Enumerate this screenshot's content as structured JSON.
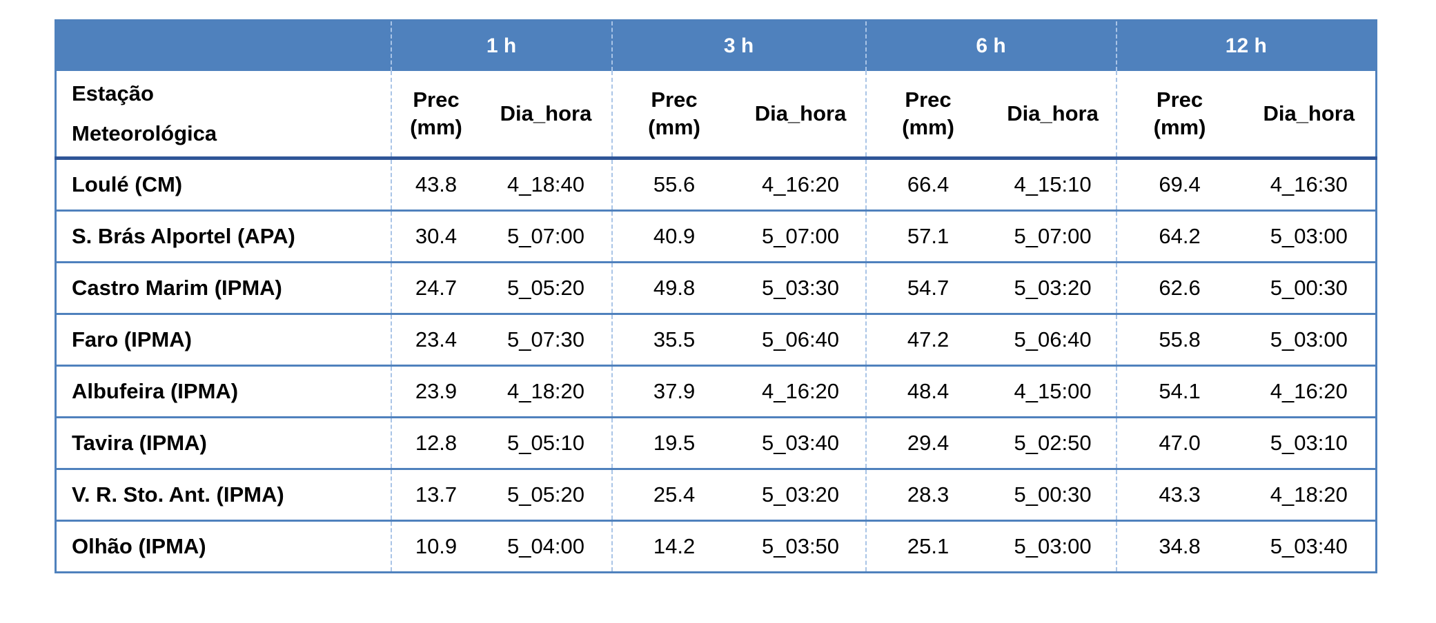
{
  "table": {
    "groups": [
      "1 h",
      "3 h",
      "6 h",
      "12 h"
    ],
    "station_header_line1": "Estação",
    "station_header_line2": "Meteorológica",
    "prec_label_line1": "Prec",
    "prec_label_line2": "(mm)",
    "dia_label": "Dia_hora",
    "rows": [
      {
        "station": "Loulé (CM)",
        "p1": "43.8",
        "d1": "4_18:40",
        "p3": "55.6",
        "d3": "4_16:20",
        "p6": "66.4",
        "d6": "4_15:10",
        "p12": "69.4",
        "d12": "4_16:30"
      },
      {
        "station": "S. Brás Alportel (APA)",
        "p1": "30.4",
        "d1": "5_07:00",
        "p3": "40.9",
        "d3": "5_07:00",
        "p6": "57.1",
        "d6": "5_07:00",
        "p12": "64.2",
        "d12": "5_03:00"
      },
      {
        "station": "Castro Marim (IPMA)",
        "p1": "24.7",
        "d1": "5_05:20",
        "p3": "49.8",
        "d3": "5_03:30",
        "p6": "54.7",
        "d6": "5_03:20",
        "p12": "62.6",
        "d12": "5_00:30"
      },
      {
        "station": "Faro (IPMA)",
        "p1": "23.4",
        "d1": "5_07:30",
        "p3": "35.5",
        "d3": "5_06:40",
        "p6": "47.2",
        "d6": "5_06:40",
        "p12": "55.8",
        "d12": "5_03:00"
      },
      {
        "station": "Albufeira (IPMA)",
        "p1": "23.9",
        "d1": "4_18:20",
        "p3": "37.9",
        "d3": "4_16:20",
        "p6": "48.4",
        "d6": "4_15:00",
        "p12": "54.1",
        "d12": "4_16:20"
      },
      {
        "station": "Tavira (IPMA)",
        "p1": "12.8",
        "d1": "5_05:10",
        "p3": "19.5",
        "d3": "5_03:40",
        "p6": "29.4",
        "d6": "5_02:50",
        "p12": "47.0",
        "d12": "5_03:10"
      },
      {
        "station": "V. R. Sto. Ant. (IPMA)",
        "p1": "13.7",
        "d1": "5_05:20",
        "p3": "25.4",
        "d3": "5_03:20",
        "p6": "28.3",
        "d6": "5_00:30",
        "p12": "43.3",
        "d12": "4_18:20"
      },
      {
        "station": "Olhão (IPMA)",
        "p1": "10.9",
        "d1": "5_04:00",
        "p3": "14.2",
        "d3": "5_03:50",
        "p6": "25.1",
        "d6": "5_03:00",
        "p12": "34.8",
        "d12": "5_03:40"
      }
    ],
    "colors": {
      "header_fill": "#4f81bd",
      "header_text": "#ffffff",
      "border": "#4f81bd",
      "header_rule": "#2f5597"
    }
  }
}
